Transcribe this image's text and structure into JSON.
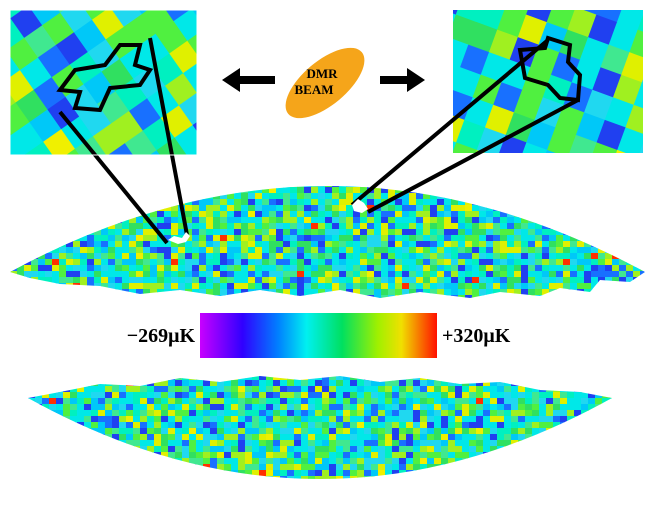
{
  "beam": {
    "line1": "DMR",
    "line2": "BEAM"
  },
  "colorbar": {
    "min_label": "−269μK",
    "max_label": "+320μK"
  }
}
